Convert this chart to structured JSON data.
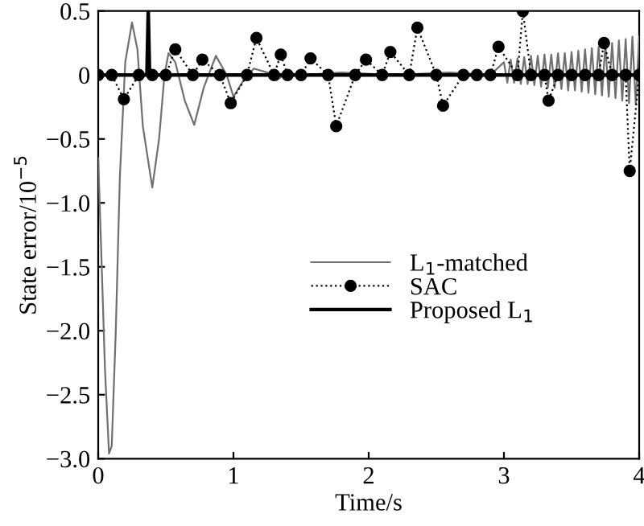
{
  "chart_data": {
    "type": "line",
    "xlabel": "Time/s",
    "ylabel": "State error/10$^{−5}$",
    "xlim": [
      0,
      4
    ],
    "xticks": [
      0,
      1,
      2,
      3,
      4
    ],
    "ylim": [
      -3.0,
      0.5
    ],
    "yticks": [
      0.5,
      0,
      {
        "value": -0.5,
        "label": "−0.5"
      },
      {
        "value": -1.0,
        "label": "−1.0"
      },
      {
        "value": -1.5,
        "label": "−1.5"
      },
      {
        "value": -2.0,
        "label": "−2.0"
      },
      {
        "value": -2.5,
        "label": "−2.5"
      },
      {
        "value": -3.0,
        "label": "−3.0"
      }
    ],
    "grid": false,
    "legend": "center",
    "series": [
      {
        "name": "L$_{1}$-matched",
        "color": "#707070",
        "line_style": "solid",
        "marker": "none",
        "x": [
          0,
          0.02,
          0.05,
          0.08,
          0.1,
          0.13,
          0.16,
          0.2,
          0.25,
          0.29,
          0.33,
          0.4,
          0.45,
          0.49,
          0.52,
          0.57,
          0.64,
          0.71,
          0.78,
          0.87,
          0.95,
          1.0,
          1.07,
          1.15,
          1.25,
          1.32,
          1.4,
          1.5,
          1.8,
          2.2,
          2.6,
          2.9,
          3.0,
          3.025,
          3.05,
          3.075,
          3.1,
          3.125,
          3.15,
          3.175,
          3.2,
          3.225,
          3.25,
          3.275,
          3.3,
          3.325,
          3.35,
          3.375,
          3.4,
          3.425,
          3.45,
          3.475,
          3.5,
          3.525,
          3.55,
          3.575,
          3.6,
          3.625,
          3.65,
          3.675,
          3.7,
          3.725,
          3.75,
          3.775,
          3.8,
          3.825,
          3.85,
          3.875,
          3.9,
          3.925,
          3.95,
          3.975,
          4.0
        ],
        "values": [
          -0.65,
          -1.3,
          -2.3,
          -2.96,
          -2.9,
          -2.0,
          -0.8,
          0.1,
          0.41,
          0.2,
          -0.4,
          -0.88,
          -0.5,
          0,
          0.17,
          0.1,
          -0.2,
          -0.39,
          -0.1,
          0.15,
          0,
          -0.17,
          -0.05,
          0.05,
          0.02,
          -0.04,
          0.02,
          0,
          0.02,
          0,
          0.02,
          0,
          0.1,
          -0.06,
          0.12,
          -0.06,
          0.13,
          -0.07,
          0.14,
          -0.07,
          0.15,
          -0.08,
          0.15,
          -0.09,
          0.16,
          -0.1,
          0.16,
          -0.1,
          0.17,
          -0.11,
          0.17,
          -0.12,
          0.18,
          -0.12,
          0.19,
          -0.13,
          0.2,
          -0.14,
          0.21,
          -0.15,
          0.22,
          -0.16,
          0.24,
          -0.17,
          0.25,
          -0.18,
          0.27,
          -0.2,
          0.28,
          -0.22,
          0.3,
          -0.23,
          0.3
        ]
      },
      {
        "name": "SAC",
        "color": "#000000",
        "line_style": "dotted",
        "marker": "circle",
        "x": [
          0,
          0.1,
          0.19,
          0.3,
          0.4,
          0.5,
          0.57,
          0.7,
          0.77,
          0.9,
          0.98,
          1.1,
          1.17,
          1.3,
          1.35,
          1.4,
          1.5,
          1.57,
          1.7,
          1.76,
          1.9,
          1.98,
          2.1,
          2.16,
          2.3,
          2.36,
          2.5,
          2.55,
          2.7,
          2.8,
          2.9,
          2.96,
          3.1,
          3.14,
          3.2,
          3.3,
          3.33,
          3.4,
          3.5,
          3.6,
          3.7,
          3.74,
          3.8,
          3.9,
          3.93,
          4.0
        ],
        "values": [
          0,
          0,
          -0.19,
          0,
          0,
          0,
          0.2,
          0,
          0.12,
          0,
          -0.22,
          0,
          0.29,
          0,
          0.16,
          0,
          0,
          0.13,
          0,
          -0.4,
          0,
          0.12,
          0,
          0.18,
          0,
          0.37,
          0,
          -0.24,
          0,
          0,
          0,
          0.22,
          0,
          0.5,
          0,
          0,
          -0.2,
          0,
          0,
          0,
          0,
          0.25,
          0,
          0,
          -0.75,
          0
        ]
      },
      {
        "name": "Proposed L$_{1}$",
        "color": "#000000",
        "line_style": "solid",
        "marker": "none",
        "x": [
          0,
          0.36,
          0.37,
          0.38,
          4.0
        ],
        "values": [
          0,
          0,
          0.5,
          0,
          0
        ]
      }
    ]
  }
}
